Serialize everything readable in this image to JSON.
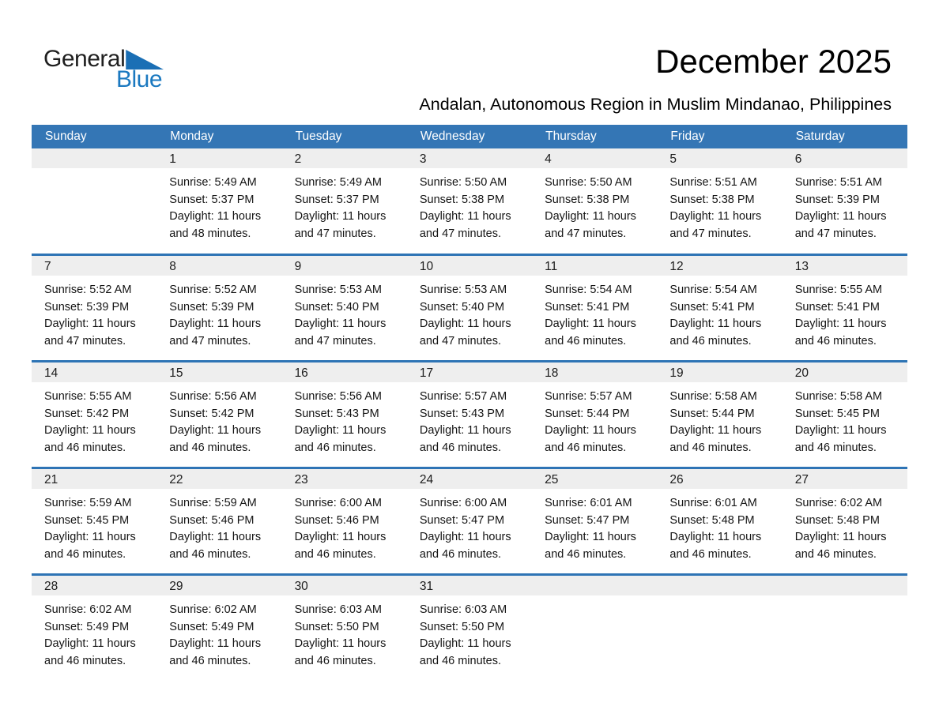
{
  "logo": {
    "general": "General",
    "blue": "Blue"
  },
  "header": {
    "title": "December 2025",
    "subtitle": "Andalan, Autonomous Region in Muslim Mindanao, Philippines"
  },
  "weekdays": [
    "Sunday",
    "Monday",
    "Tuesday",
    "Wednesday",
    "Thursday",
    "Friday",
    "Saturday"
  ],
  "colors": {
    "header_bg": "#3476b5",
    "row_border": "#2e74b5",
    "strip_bg": "#eeeeee",
    "logo_blue": "#1b79c0",
    "triangle_blue": "#1a6fb5",
    "text_dark": "#141414"
  },
  "weeks": [
    [
      {
        "day": ""
      },
      {
        "day": "1",
        "sunrise": "Sunrise: 5:49 AM",
        "sunset": "Sunset: 5:37 PM",
        "daylight": [
          "Daylight: 11 hours",
          "and 48 minutes."
        ]
      },
      {
        "day": "2",
        "sunrise": "Sunrise: 5:49 AM",
        "sunset": "Sunset: 5:37 PM",
        "daylight": [
          "Daylight: 11 hours",
          "and 47 minutes."
        ]
      },
      {
        "day": "3",
        "sunrise": "Sunrise: 5:50 AM",
        "sunset": "Sunset: 5:38 PM",
        "daylight": [
          "Daylight: 11 hours",
          "and 47 minutes."
        ]
      },
      {
        "day": "4",
        "sunrise": "Sunrise: 5:50 AM",
        "sunset": "Sunset: 5:38 PM",
        "daylight": [
          "Daylight: 11 hours",
          "and 47 minutes."
        ]
      },
      {
        "day": "5",
        "sunrise": "Sunrise: 5:51 AM",
        "sunset": "Sunset: 5:38 PM",
        "daylight": [
          "Daylight: 11 hours",
          "and 47 minutes."
        ]
      },
      {
        "day": "6",
        "sunrise": "Sunrise: 5:51 AM",
        "sunset": "Sunset: 5:39 PM",
        "daylight": [
          "Daylight: 11 hours",
          "and 47 minutes."
        ]
      }
    ],
    [
      {
        "day": "7",
        "sunrise": "Sunrise: 5:52 AM",
        "sunset": "Sunset: 5:39 PM",
        "daylight": [
          "Daylight: 11 hours",
          "and 47 minutes."
        ]
      },
      {
        "day": "8",
        "sunrise": "Sunrise: 5:52 AM",
        "sunset": "Sunset: 5:39 PM",
        "daylight": [
          "Daylight: 11 hours",
          "and 47 minutes."
        ]
      },
      {
        "day": "9",
        "sunrise": "Sunrise: 5:53 AM",
        "sunset": "Sunset: 5:40 PM",
        "daylight": [
          "Daylight: 11 hours",
          "and 47 minutes."
        ]
      },
      {
        "day": "10",
        "sunrise": "Sunrise: 5:53 AM",
        "sunset": "Sunset: 5:40 PM",
        "daylight": [
          "Daylight: 11 hours",
          "and 47 minutes."
        ]
      },
      {
        "day": "11",
        "sunrise": "Sunrise: 5:54 AM",
        "sunset": "Sunset: 5:41 PM",
        "daylight": [
          "Daylight: 11 hours",
          "and 46 minutes."
        ]
      },
      {
        "day": "12",
        "sunrise": "Sunrise: 5:54 AM",
        "sunset": "Sunset: 5:41 PM",
        "daylight": [
          "Daylight: 11 hours",
          "and 46 minutes."
        ]
      },
      {
        "day": "13",
        "sunrise": "Sunrise: 5:55 AM",
        "sunset": "Sunset: 5:41 PM",
        "daylight": [
          "Daylight: 11 hours",
          "and 46 minutes."
        ]
      }
    ],
    [
      {
        "day": "14",
        "sunrise": "Sunrise: 5:55 AM",
        "sunset": "Sunset: 5:42 PM",
        "daylight": [
          "Daylight: 11 hours",
          "and 46 minutes."
        ]
      },
      {
        "day": "15",
        "sunrise": "Sunrise: 5:56 AM",
        "sunset": "Sunset: 5:42 PM",
        "daylight": [
          "Daylight: 11 hours",
          "and 46 minutes."
        ]
      },
      {
        "day": "16",
        "sunrise": "Sunrise: 5:56 AM",
        "sunset": "Sunset: 5:43 PM",
        "daylight": [
          "Daylight: 11 hours",
          "and 46 minutes."
        ]
      },
      {
        "day": "17",
        "sunrise": "Sunrise: 5:57 AM",
        "sunset": "Sunset: 5:43 PM",
        "daylight": [
          "Daylight: 11 hours",
          "and 46 minutes."
        ]
      },
      {
        "day": "18",
        "sunrise": "Sunrise: 5:57 AM",
        "sunset": "Sunset: 5:44 PM",
        "daylight": [
          "Daylight: 11 hours",
          "and 46 minutes."
        ]
      },
      {
        "day": "19",
        "sunrise": "Sunrise: 5:58 AM",
        "sunset": "Sunset: 5:44 PM",
        "daylight": [
          "Daylight: 11 hours",
          "and 46 minutes."
        ]
      },
      {
        "day": "20",
        "sunrise": "Sunrise: 5:58 AM",
        "sunset": "Sunset: 5:45 PM",
        "daylight": [
          "Daylight: 11 hours",
          "and 46 minutes."
        ]
      }
    ],
    [
      {
        "day": "21",
        "sunrise": "Sunrise: 5:59 AM",
        "sunset": "Sunset: 5:45 PM",
        "daylight": [
          "Daylight: 11 hours",
          "and 46 minutes."
        ]
      },
      {
        "day": "22",
        "sunrise": "Sunrise: 5:59 AM",
        "sunset": "Sunset: 5:46 PM",
        "daylight": [
          "Daylight: 11 hours",
          "and 46 minutes."
        ]
      },
      {
        "day": "23",
        "sunrise": "Sunrise: 6:00 AM",
        "sunset": "Sunset: 5:46 PM",
        "daylight": [
          "Daylight: 11 hours",
          "and 46 minutes."
        ]
      },
      {
        "day": "24",
        "sunrise": "Sunrise: 6:00 AM",
        "sunset": "Sunset: 5:47 PM",
        "daylight": [
          "Daylight: 11 hours",
          "and 46 minutes."
        ]
      },
      {
        "day": "25",
        "sunrise": "Sunrise: 6:01 AM",
        "sunset": "Sunset: 5:47 PM",
        "daylight": [
          "Daylight: 11 hours",
          "and 46 minutes."
        ]
      },
      {
        "day": "26",
        "sunrise": "Sunrise: 6:01 AM",
        "sunset": "Sunset: 5:48 PM",
        "daylight": [
          "Daylight: 11 hours",
          "and 46 minutes."
        ]
      },
      {
        "day": "27",
        "sunrise": "Sunrise: 6:02 AM",
        "sunset": "Sunset: 5:48 PM",
        "daylight": [
          "Daylight: 11 hours",
          "and 46 minutes."
        ]
      }
    ],
    [
      {
        "day": "28",
        "sunrise": "Sunrise: 6:02 AM",
        "sunset": "Sunset: 5:49 PM",
        "daylight": [
          "Daylight: 11 hours",
          "and 46 minutes."
        ]
      },
      {
        "day": "29",
        "sunrise": "Sunrise: 6:02 AM",
        "sunset": "Sunset: 5:49 PM",
        "daylight": [
          "Daylight: 11 hours",
          "and 46 minutes."
        ]
      },
      {
        "day": "30",
        "sunrise": "Sunrise: 6:03 AM",
        "sunset": "Sunset: 5:50 PM",
        "daylight": [
          "Daylight: 11 hours",
          "and 46 minutes."
        ]
      },
      {
        "day": "31",
        "sunrise": "Sunrise: 6:03 AM",
        "sunset": "Sunset: 5:50 PM",
        "daylight": [
          "Daylight: 11 hours",
          "and 46 minutes."
        ]
      },
      {
        "day": ""
      },
      {
        "day": ""
      },
      {
        "day": ""
      }
    ]
  ]
}
